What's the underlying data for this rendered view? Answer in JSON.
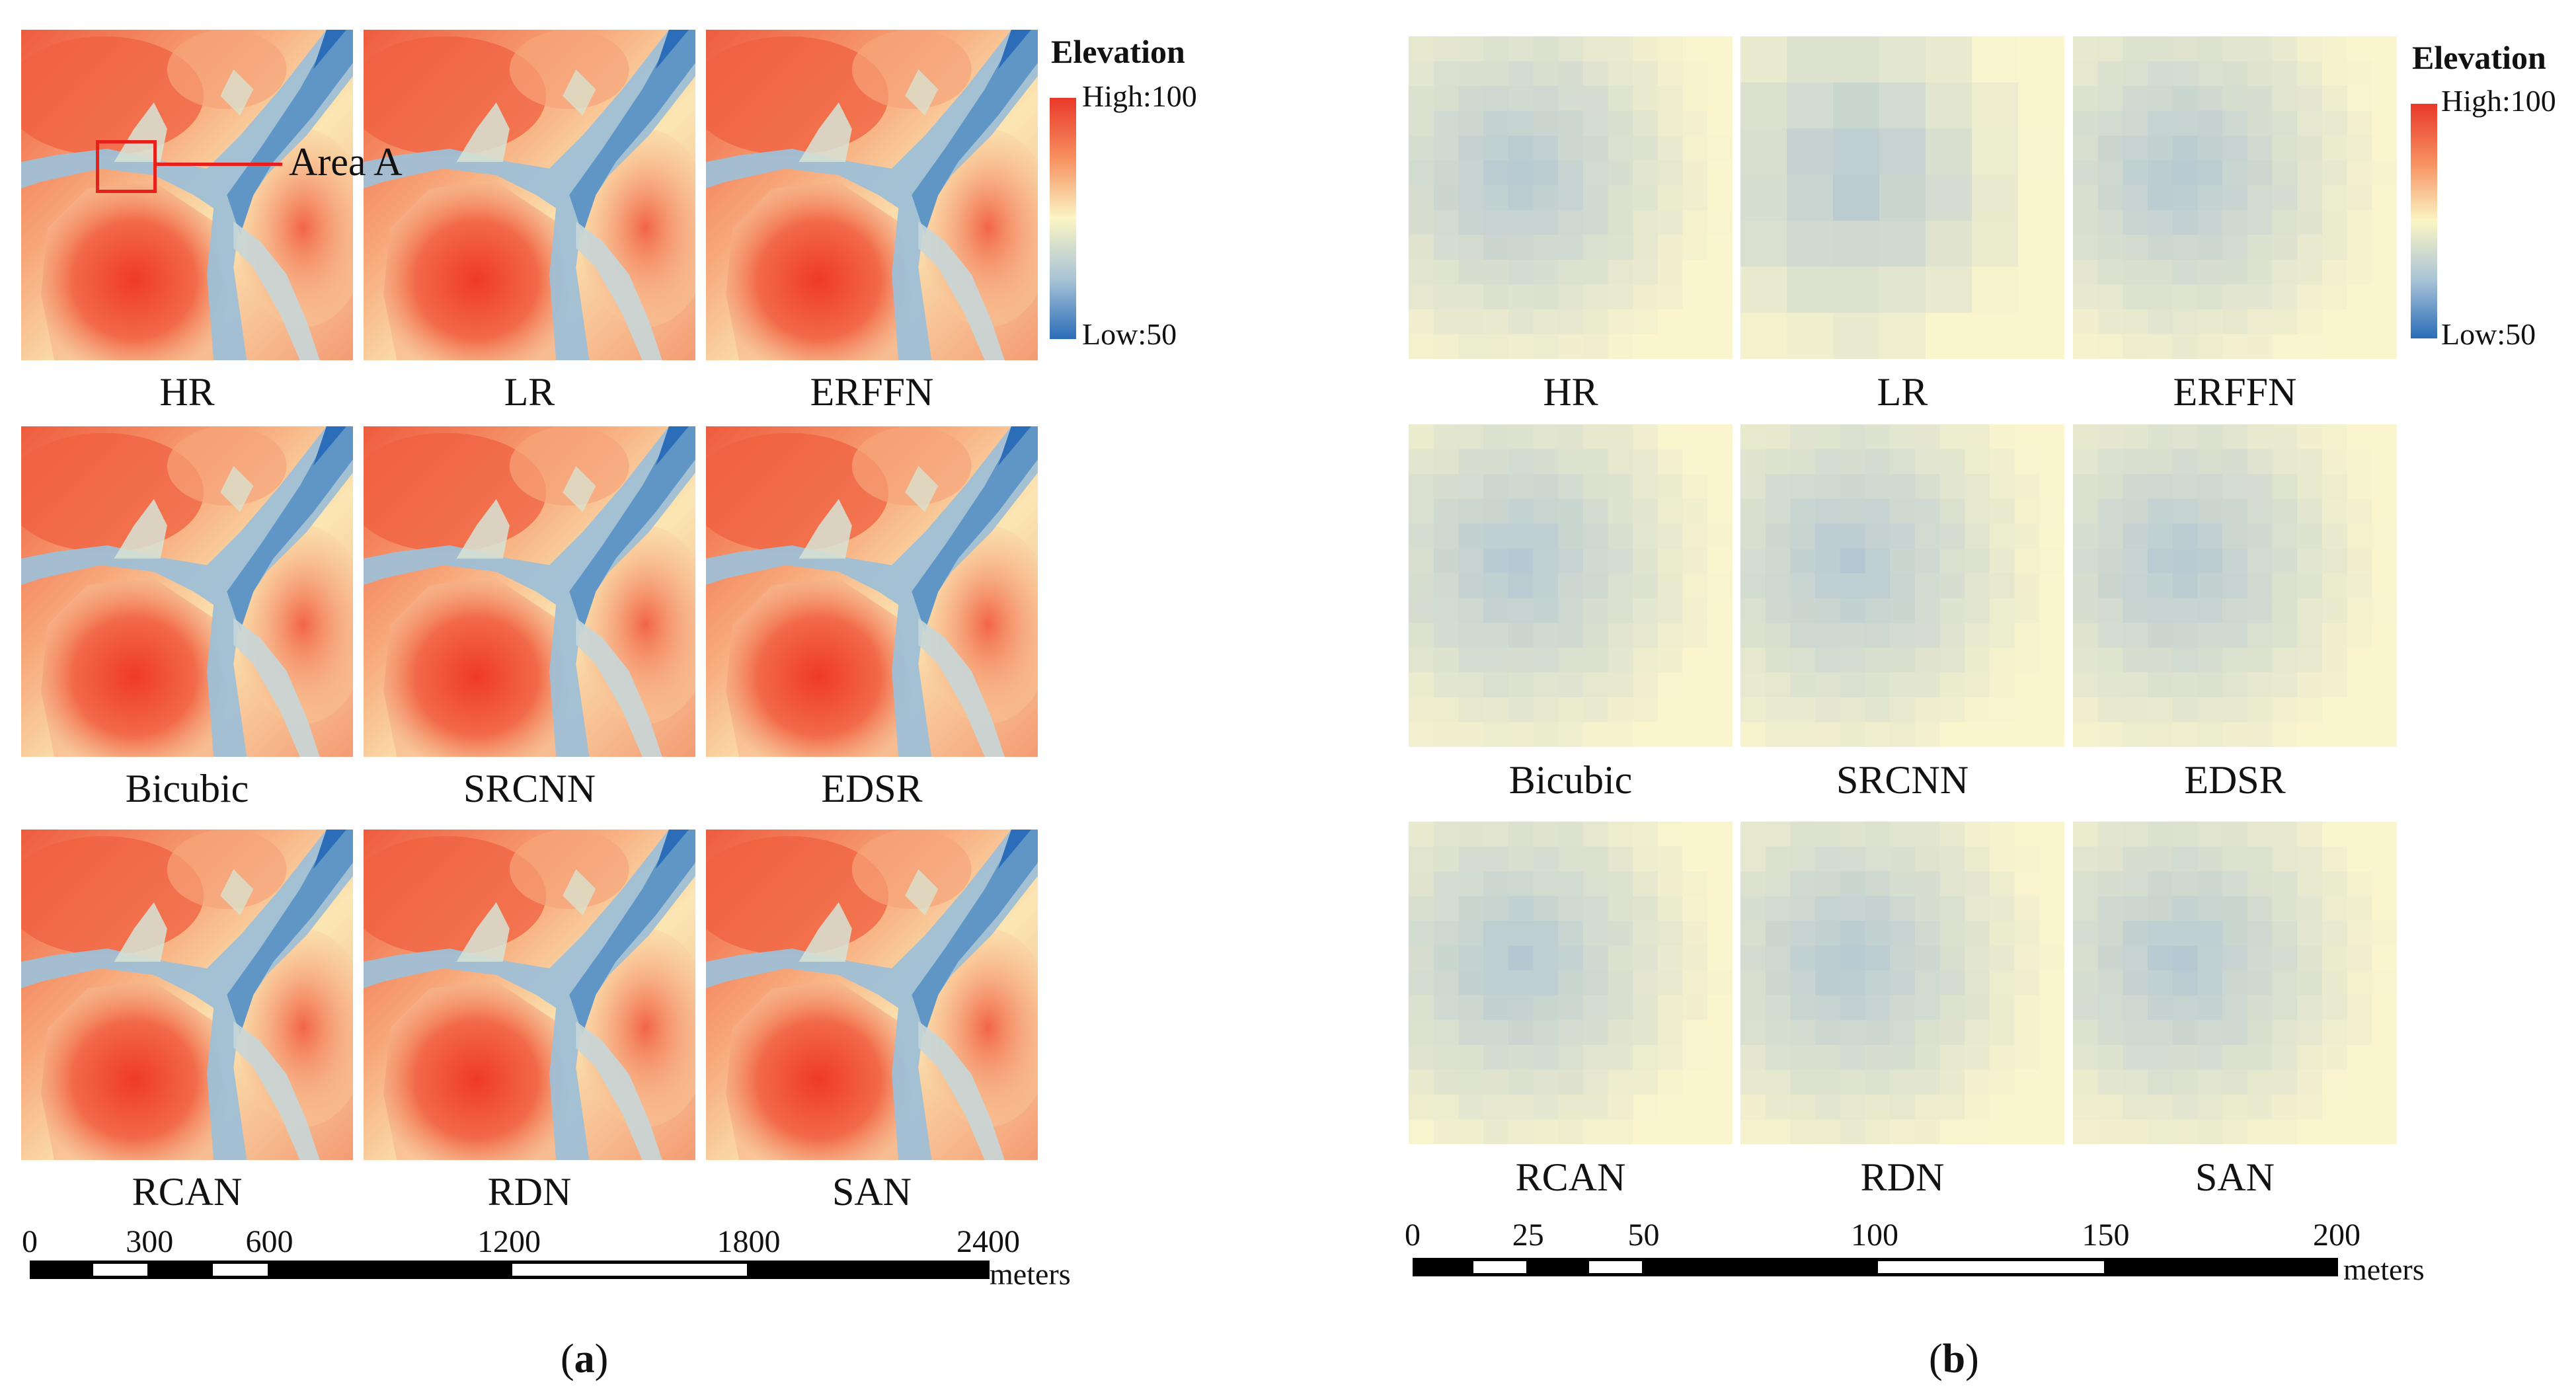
{
  "panel_a": {
    "tiles": [
      {
        "label": "HR"
      },
      {
        "label": "LR"
      },
      {
        "label": "ERFFN"
      },
      {
        "label": "Bicubic"
      },
      {
        "label": "SRCNN"
      },
      {
        "label": "EDSR"
      },
      {
        "label": "RCAN"
      },
      {
        "label": "RDN"
      },
      {
        "label": "SAN"
      }
    ],
    "annotation": {
      "label": "Area A",
      "color": "#e8201c"
    },
    "legend": {
      "title": "Elevation",
      "high": "High:100",
      "low": "Low:50"
    },
    "scalebar": {
      "ticks": [
        "0",
        "300",
        "600",
        "1200",
        "1800",
        "2400"
      ],
      "values": [
        0,
        300,
        600,
        1200,
        1800,
        2400
      ],
      "units": "meters"
    },
    "caption": {
      "open": "(",
      "letter": "a",
      "close": ")"
    }
  },
  "panel_b": {
    "tiles": [
      {
        "label": "HR"
      },
      {
        "label": "LR"
      },
      {
        "label": "ERFFN"
      },
      {
        "label": "Bicubic"
      },
      {
        "label": "SRCNN"
      },
      {
        "label": "EDSR"
      },
      {
        "label": "RCAN"
      },
      {
        "label": "RDN"
      },
      {
        "label": "SAN"
      }
    ],
    "legend": {
      "title": "Elevation",
      "high": "High:100",
      "low": "Low:50"
    },
    "scalebar": {
      "ticks": [
        "0",
        "25",
        "50",
        "100",
        "150",
        "200"
      ],
      "values": [
        0,
        25,
        50,
        100,
        150,
        200
      ],
      "units": "meters"
    },
    "caption": {
      "open": "(",
      "letter": "b",
      "close": ")"
    }
  },
  "colors": {
    "ramp_high": "#e8382a",
    "ramp_mid": "#fbf5c4",
    "ramp_low": "#2b6db8",
    "scale_black": "#000000"
  }
}
